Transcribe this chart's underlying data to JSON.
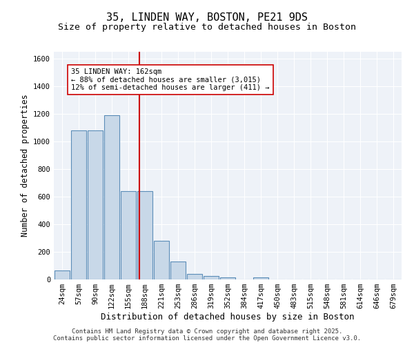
{
  "title": "35, LINDEN WAY, BOSTON, PE21 9DS",
  "subtitle": "Size of property relative to detached houses in Boston",
  "xlabel": "Distribution of detached houses by size in Boston",
  "ylabel": "Number of detached properties",
  "bins": [
    "24sqm",
    "57sqm",
    "90sqm",
    "122sqm",
    "155sqm",
    "188sqm",
    "221sqm",
    "253sqm",
    "286sqm",
    "319sqm",
    "352sqm",
    "384sqm",
    "417sqm",
    "450sqm",
    "483sqm",
    "515sqm",
    "548sqm",
    "581sqm",
    "614sqm",
    "646sqm",
    "679sqm"
  ],
  "bar_values": [
    65,
    1080,
    1080,
    1190,
    640,
    640,
    280,
    130,
    40,
    25,
    15,
    0,
    15,
    0,
    0,
    0,
    0,
    0,
    0,
    0,
    0
  ],
  "bar_color": "#c8d8e8",
  "bar_edge_color": "#5b8db8",
  "ylim": [
    0,
    1650
  ],
  "yticks": [
    0,
    200,
    400,
    600,
    800,
    1000,
    1200,
    1400,
    1600
  ],
  "vline_x": 4.65,
  "vline_color": "#cc0000",
  "annotation_text": "35 LINDEN WAY: 162sqm\n← 88% of detached houses are smaller (3,015)\n12% of semi-detached houses are larger (411) →",
  "annotation_box_color": "#ffffff",
  "annotation_box_edge_color": "#cc0000",
  "bg_color": "#eef2f8",
  "footer_text": "Contains HM Land Registry data © Crown copyright and database right 2025.\nContains public sector information licensed under the Open Government Licence v3.0.",
  "title_fontsize": 11,
  "subtitle_fontsize": 9.5,
  "xlabel_fontsize": 9,
  "ylabel_fontsize": 8.5,
  "tick_fontsize": 7.5,
  "annotation_fontsize": 7.5,
  "footer_fontsize": 6.5
}
